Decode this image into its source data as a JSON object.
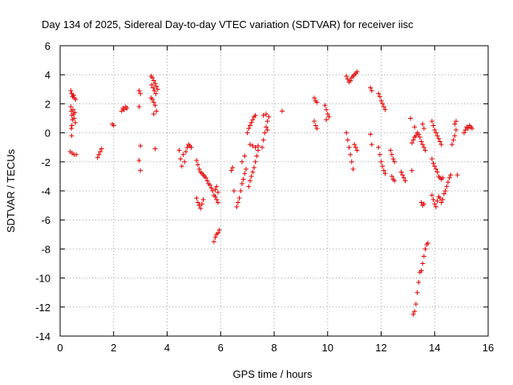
{
  "chart_data": {
    "type": "scatter",
    "title": "Day 134 of 2025, Sidereal Day-to-day VTEC variation (SDTVAR) for receiver iisc",
    "xlabel": "GPS time / hours",
    "ylabel": "SDTVAR / TECUs",
    "xlim": [
      0,
      16
    ],
    "ylim": [
      -14,
      6
    ],
    "x_ticks": [
      0,
      2,
      4,
      6,
      8,
      10,
      12,
      14,
      16
    ],
    "y_ticks": [
      -14,
      -12,
      -10,
      -8,
      -6,
      -4,
      -2,
      0,
      2,
      4,
      6
    ],
    "x_tick_labels": [
      "0",
      "2",
      "4",
      "6",
      "8",
      "10",
      "12",
      "14",
      "16"
    ],
    "y_tick_labels": [
      "-14",
      "-12",
      "-10",
      "-8",
      "-6",
      "-4",
      "-2",
      "0",
      "2",
      "4",
      "6"
    ],
    "grid": true,
    "marker": "+",
    "marker_color": "#e00000",
    "series": [
      {
        "name": "SDTVAR",
        "points": [
          [
            0.4,
            2.9
          ],
          [
            0.43,
            2.7
          ],
          [
            0.46,
            2.5
          ],
          [
            0.5,
            2.6
          ],
          [
            0.53,
            2.4
          ],
          [
            0.58,
            2.3
          ],
          [
            0.4,
            1.8
          ],
          [
            0.42,
            1.5
          ],
          [
            0.44,
            1.2
          ],
          [
            0.46,
            0.9
          ],
          [
            0.48,
            1.6
          ],
          [
            0.5,
            1.3
          ],
          [
            0.52,
            1.0
          ],
          [
            0.55,
            1.4
          ],
          [
            0.57,
            0.7
          ],
          [
            0.42,
            0.3
          ],
          [
            0.43,
            -0.2
          ],
          [
            0.44,
            0.5
          ],
          [
            0.38,
            -1.3
          ],
          [
            0.45,
            -1.4
          ],
          [
            0.52,
            -1.5
          ],
          [
            0.6,
            -1.5
          ],
          [
            1.4,
            -1.7
          ],
          [
            1.45,
            -1.5
          ],
          [
            1.5,
            -1.3
          ],
          [
            1.55,
            -1.1
          ],
          [
            1.95,
            0.6
          ],
          [
            2.0,
            0.5
          ],
          [
            2.3,
            1.5
          ],
          [
            2.35,
            1.7
          ],
          [
            2.4,
            1.6
          ],
          [
            2.45,
            1.8
          ],
          [
            2.5,
            1.7
          ],
          [
            2.95,
            2.9
          ],
          [
            3.0,
            2.7
          ],
          [
            2.95,
            1.8
          ],
          [
            3.0,
            -0.9
          ],
          [
            2.95,
            -1.9
          ],
          [
            3.0,
            -2.6
          ],
          [
            3.4,
            3.9
          ],
          [
            3.45,
            3.8
          ],
          [
            3.5,
            3.6
          ],
          [
            3.55,
            3.4
          ],
          [
            3.6,
            3.2
          ],
          [
            3.65,
            3.0
          ],
          [
            3.42,
            3.3
          ],
          [
            3.48,
            3.1
          ],
          [
            3.52,
            2.9
          ],
          [
            3.58,
            2.7
          ],
          [
            3.4,
            2.4
          ],
          [
            3.45,
            2.3
          ],
          [
            3.5,
            2.1
          ],
          [
            3.55,
            1.9
          ],
          [
            3.6,
            1.5
          ],
          [
            3.5,
            1.3
          ],
          [
            3.55,
            -1.1
          ],
          [
            4.45,
            -1.2
          ],
          [
            4.5,
            -1.8
          ],
          [
            4.55,
            -2.3
          ],
          [
            4.6,
            -1.5
          ],
          [
            4.65,
            -2.0
          ],
          [
            4.7,
            -1.3
          ],
          [
            4.75,
            -1.0
          ],
          [
            4.8,
            -0.8
          ],
          [
            4.85,
            -0.9
          ],
          [
            4.9,
            -1.0
          ],
          [
            5.1,
            -1.9
          ],
          [
            5.15,
            -2.2
          ],
          [
            5.2,
            -2.5
          ],
          [
            5.25,
            -2.7
          ],
          [
            5.3,
            -2.8
          ],
          [
            5.35,
            -2.9
          ],
          [
            5.4,
            -3.0
          ],
          [
            5.45,
            -3.1
          ],
          [
            5.5,
            -3.3
          ],
          [
            5.55,
            -3.5
          ],
          [
            5.6,
            -3.6
          ],
          [
            5.65,
            -3.8
          ],
          [
            5.7,
            -4.0
          ],
          [
            5.75,
            -4.3
          ],
          [
            5.8,
            -3.9
          ],
          [
            5.85,
            -3.7
          ],
          [
            5.9,
            -4.1
          ],
          [
            5.1,
            -4.5
          ],
          [
            5.15,
            -4.8
          ],
          [
            5.2,
            -5.0
          ],
          [
            5.25,
            -5.2
          ],
          [
            5.3,
            -4.9
          ],
          [
            5.35,
            -4.6
          ],
          [
            5.8,
            -4.4
          ],
          [
            5.85,
            -4.6
          ],
          [
            5.9,
            -4.8
          ],
          [
            5.75,
            -7.5
          ],
          [
            5.8,
            -7.2
          ],
          [
            5.85,
            -7.0
          ],
          [
            5.9,
            -6.9
          ],
          [
            5.95,
            -6.7
          ],
          [
            6.4,
            -2.6
          ],
          [
            6.45,
            -2.4
          ],
          [
            6.5,
            -4.0
          ],
          [
            6.6,
            -5.1
          ],
          [
            6.65,
            -4.8
          ],
          [
            6.7,
            -4.5
          ],
          [
            6.75,
            -4.0
          ],
          [
            6.8,
            -3.5
          ],
          [
            6.85,
            -3.2
          ],
          [
            6.9,
            -2.8
          ],
          [
            6.95,
            -2.5
          ],
          [
            6.8,
            -2.0
          ],
          [
            6.9,
            -1.6
          ],
          [
            7.0,
            0.0
          ],
          [
            7.05,
            0.3
          ],
          [
            7.1,
            0.5
          ],
          [
            7.15,
            0.7
          ],
          [
            7.2,
            0.9
          ],
          [
            7.25,
            1.1
          ],
          [
            7.3,
            1.2
          ],
          [
            7.05,
            -3.7
          ],
          [
            7.1,
            -3.3
          ],
          [
            7.15,
            -3.0
          ],
          [
            7.2,
            -2.7
          ],
          [
            7.25,
            -2.4
          ],
          [
            7.3,
            -2.0
          ],
          [
            7.35,
            -1.6
          ],
          [
            7.4,
            -1.2
          ],
          [
            7.1,
            -0.8
          ],
          [
            7.2,
            -0.9
          ],
          [
            7.3,
            -1.0
          ],
          [
            7.4,
            -0.9
          ],
          [
            7.55,
            -1.0
          ],
          [
            7.6,
            -0.5
          ],
          [
            7.65,
            0.0
          ],
          [
            7.7,
            0.4
          ],
          [
            7.75,
            0.8
          ],
          [
            7.8,
            1.1
          ],
          [
            7.6,
            1.2
          ],
          [
            7.7,
            1.3
          ],
          [
            7.75,
            0.2
          ],
          [
            8.3,
            1.5
          ],
          [
            9.5,
            2.4
          ],
          [
            9.55,
            2.2
          ],
          [
            9.6,
            2.1
          ],
          [
            9.5,
            0.8
          ],
          [
            9.55,
            0.5
          ],
          [
            9.6,
            0.3
          ],
          [
            9.9,
            1.9
          ],
          [
            9.95,
            1.6
          ],
          [
            10.0,
            1.3
          ],
          [
            10.05,
            1.1
          ],
          [
            9.95,
            0.9
          ],
          [
            10.7,
            3.9
          ],
          [
            10.75,
            3.7
          ],
          [
            10.8,
            3.5
          ],
          [
            10.85,
            3.6
          ],
          [
            10.9,
            3.8
          ],
          [
            10.95,
            3.9
          ],
          [
            11.0,
            4.0
          ],
          [
            11.05,
            4.1
          ],
          [
            11.1,
            4.2
          ],
          [
            10.7,
            0.0
          ],
          [
            10.75,
            -0.5
          ],
          [
            10.8,
            -1.0
          ],
          [
            10.85,
            -1.5
          ],
          [
            10.9,
            -2.0
          ],
          [
            10.95,
            -2.5
          ],
          [
            11.0,
            -0.8
          ],
          [
            11.05,
            -1.0
          ],
          [
            11.1,
            -1.2
          ],
          [
            11.6,
            3.1
          ],
          [
            11.65,
            2.9
          ],
          [
            11.6,
            -0.1
          ],
          [
            11.65,
            -0.8
          ],
          [
            11.9,
            2.7
          ],
          [
            11.95,
            2.5
          ],
          [
            12.0,
            2.2
          ],
          [
            12.05,
            2.0
          ],
          [
            12.1,
            1.8
          ],
          [
            12.15,
            1.6
          ],
          [
            11.9,
            -1.0
          ],
          [
            11.95,
            -1.5
          ],
          [
            12.0,
            -2.0
          ],
          [
            12.05,
            -2.3
          ],
          [
            12.1,
            -2.6
          ],
          [
            12.15,
            -2.8
          ],
          [
            12.35,
            -1.2
          ],
          [
            12.4,
            -1.5
          ],
          [
            12.45,
            -1.8
          ],
          [
            12.5,
            -2.0
          ],
          [
            12.4,
            -3.0
          ],
          [
            12.45,
            -3.2
          ],
          [
            12.5,
            -3.3
          ],
          [
            12.75,
            -2.7
          ],
          [
            12.8,
            -2.9
          ],
          [
            12.85,
            -3.1
          ],
          [
            12.9,
            -3.3
          ],
          [
            13.1,
            1.0
          ],
          [
            13.15,
            -2.6
          ],
          [
            13.15,
            -0.7
          ],
          [
            13.2,
            -0.5
          ],
          [
            13.25,
            -0.3
          ],
          [
            13.3,
            -0.2
          ],
          [
            13.35,
            0.0
          ],
          [
            13.4,
            -0.1
          ],
          [
            13.45,
            -0.3
          ],
          [
            13.5,
            -0.6
          ],
          [
            13.55,
            -0.8
          ],
          [
            13.6,
            -1.0
          ],
          [
            13.65,
            -1.2
          ],
          [
            13.25,
            0.4
          ],
          [
            13.55,
            0.6
          ],
          [
            13.6,
            0.3
          ],
          [
            13.5,
            -4.8
          ],
          [
            13.55,
            -5.0
          ],
          [
            13.6,
            -4.9
          ],
          [
            13.2,
            -12.5
          ],
          [
            13.25,
            -12.3
          ],
          [
            13.3,
            -11.8
          ],
          [
            13.35,
            -11.0
          ],
          [
            13.4,
            -10.3
          ],
          [
            13.45,
            -9.6
          ],
          [
            13.5,
            -9.5
          ],
          [
            13.55,
            -9.0
          ],
          [
            13.6,
            -8.5
          ],
          [
            13.65,
            -8.0
          ],
          [
            13.7,
            -7.7
          ],
          [
            13.75,
            -7.6
          ],
          [
            13.9,
            0.8
          ],
          [
            13.95,
            0.5
          ],
          [
            14.0,
            0.2
          ],
          [
            14.05,
            0.0
          ],
          [
            14.1,
            -0.2
          ],
          [
            14.15,
            -0.4
          ],
          [
            14.2,
            -0.6
          ],
          [
            14.25,
            -0.8
          ],
          [
            13.9,
            -1.8
          ],
          [
            13.95,
            -2.1
          ],
          [
            14.0,
            -2.3
          ],
          [
            14.05,
            -2.5
          ],
          [
            14.1,
            -2.7
          ],
          [
            14.15,
            -3.0
          ],
          [
            14.2,
            -3.1
          ],
          [
            14.25,
            -3.2
          ],
          [
            14.3,
            -3.1
          ],
          [
            13.9,
            -4.3
          ],
          [
            13.95,
            -4.6
          ],
          [
            14.0,
            -4.9
          ],
          [
            14.05,
            -5.1
          ],
          [
            14.1,
            -4.7
          ],
          [
            14.15,
            -4.4
          ],
          [
            14.2,
            -4.5
          ],
          [
            14.25,
            -4.8
          ],
          [
            14.3,
            -4.6
          ],
          [
            14.35,
            -4.2
          ],
          [
            14.4,
            -4.0
          ],
          [
            14.45,
            -3.7
          ],
          [
            14.5,
            -3.4
          ],
          [
            14.55,
            -3.1
          ],
          [
            14.6,
            -2.9
          ],
          [
            14.65,
            -0.8
          ],
          [
            14.7,
            -0.5
          ],
          [
            14.75,
            -0.2
          ],
          [
            14.8,
            0.2
          ],
          [
            14.75,
            0.6
          ],
          [
            14.8,
            0.8
          ],
          [
            14.85,
            -2.9
          ],
          [
            15.1,
            0.0
          ],
          [
            15.15,
            0.2
          ],
          [
            15.2,
            0.4
          ],
          [
            15.25,
            0.3
          ],
          [
            15.3,
            0.5
          ],
          [
            15.35,
            0.4
          ],
          [
            15.4,
            0.3
          ]
        ]
      }
    ]
  }
}
